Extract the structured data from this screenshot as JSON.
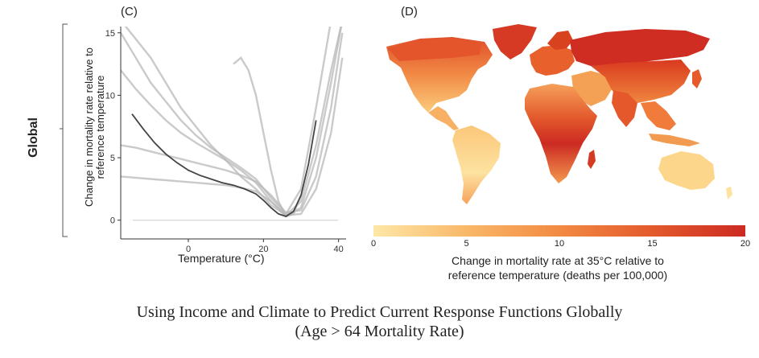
{
  "row_label": "Global",
  "caption": {
    "line1": "Using Income and Climate to Predict Current Response Functions Globally",
    "line2": "(Age > 64 Mortality Rate)"
  },
  "chart_data": [
    {
      "panel": "(C)",
      "type": "line",
      "xlabel": "Temperature (°C)",
      "ylabel": [
        "Change in mortality rate relative to",
        "reference temperature"
      ],
      "xlim": [
        -18,
        42
      ],
      "ylim": [
        -1.5,
        15.5
      ],
      "xticks": [
        0,
        20,
        40
      ],
      "yticks": [
        0,
        5,
        10,
        15
      ],
      "colors": {
        "individual": "#b8b8b8",
        "mean": "#444444",
        "baseline": "#cccccc"
      },
      "series": [
        {
          "role": "mean",
          "x": [
            -15,
            -12,
            -9,
            -6,
            -3,
            0,
            3,
            6,
            9,
            12,
            15,
            18,
            20,
            22,
            24,
            26,
            28,
            30,
            32,
            34
          ],
          "y": [
            8.5,
            7.3,
            6.2,
            5.3,
            4.6,
            4.0,
            3.6,
            3.3,
            3.0,
            2.8,
            2.5,
            2.1,
            1.6,
            1.0,
            0.5,
            0.3,
            0.7,
            2.0,
            4.5,
            8.0
          ]
        },
        {
          "role": "individual",
          "x": [
            -18,
            -14,
            -10,
            -6,
            -2,
            2,
            6,
            10,
            14,
            18,
            22,
            26,
            30,
            34,
            38,
            41
          ],
          "y": [
            16,
            14.5,
            13,
            11,
            9,
            7.5,
            6,
            4.8,
            3.5,
            2.5,
            1.2,
            0.4,
            1.5,
            6,
            12,
            16
          ]
        },
        {
          "role": "individual",
          "x": [
            -18,
            -14,
            -10,
            -6,
            -2,
            2,
            6,
            10,
            14,
            18,
            22,
            26,
            30,
            34,
            38,
            41
          ],
          "y": [
            12,
            10.5,
            9.2,
            8,
            7,
            6.2,
            5.5,
            4.8,
            4.0,
            3.0,
            1.5,
            0.3,
            1.0,
            5,
            11,
            16
          ]
        },
        {
          "role": "individual",
          "x": [
            -18,
            -14,
            -10,
            -6,
            -2,
            2,
            6,
            10,
            14,
            18,
            22,
            26,
            30,
            34,
            38,
            41
          ],
          "y": [
            6,
            5.8,
            5.5,
            5.2,
            4.9,
            4.6,
            4.3,
            4.0,
            3.6,
            3.1,
            2.0,
            0.6,
            0.8,
            3.5,
            9,
            15
          ]
        },
        {
          "role": "individual",
          "x": [
            -18,
            -14,
            -10,
            -6,
            -2,
            2,
            6,
            10,
            14,
            18,
            22,
            26,
            30,
            34,
            38,
            41
          ],
          "y": [
            3.5,
            3.4,
            3.3,
            3.2,
            3.1,
            3.0,
            2.9,
            2.8,
            2.6,
            2.3,
            1.5,
            0.4,
            0.5,
            2.5,
            7,
            13
          ]
        },
        {
          "role": "individual",
          "x": [
            12,
            14,
            16,
            18,
            20,
            22,
            24,
            26,
            28,
            30
          ],
          "y": [
            12.5,
            13,
            12,
            10,
            7,
            4,
            1.5,
            0.3,
            0.5,
            2
          ]
        },
        {
          "role": "individual",
          "x": [
            -18,
            -14,
            -10,
            -6,
            -2,
            2,
            6,
            10,
            14,
            18,
            22,
            26,
            30,
            34,
            38,
            41
          ],
          "y": [
            15,
            13,
            11,
            9.5,
            8,
            6.8,
            5.8,
            5.0,
            4.2,
            3.3,
            1.8,
            0.5,
            2.5,
            9,
            16,
            18
          ]
        }
      ]
    },
    {
      "panel": "(D)",
      "type": "heatmap",
      "subtype": "choropleth-map",
      "colorbar": {
        "min": 0,
        "max": 20,
        "ticks": [
          0,
          5,
          10,
          15,
          20
        ],
        "colors": [
          "#fde7a7",
          "#f9b868",
          "#f28a43",
          "#e35a2c",
          "#cc2a22"
        ],
        "title_line1": "Change in mortality rate at 35°C relative to",
        "title_line2": "reference temperature (deaths per 100,000)"
      },
      "regions": [
        {
          "region": "North America",
          "value": 12
        },
        {
          "region": "Greenland",
          "value": 20
        },
        {
          "region": "Central America",
          "value": 6
        },
        {
          "region": "South America",
          "value": 5
        },
        {
          "region": "Europe",
          "value": 16
        },
        {
          "region": "Russia",
          "value": 19
        },
        {
          "region": "Middle East",
          "value": 9
        },
        {
          "region": "North Africa",
          "value": 8
        },
        {
          "region": "Central Africa",
          "value": 17
        },
        {
          "region": "Southern Africa",
          "value": 10
        },
        {
          "region": "South Asia",
          "value": 13
        },
        {
          "region": "East Asia",
          "value": 15
        },
        {
          "region": "Southeast Asia",
          "value": 11
        },
        {
          "region": "Australia",
          "value": 4
        }
      ]
    }
  ]
}
